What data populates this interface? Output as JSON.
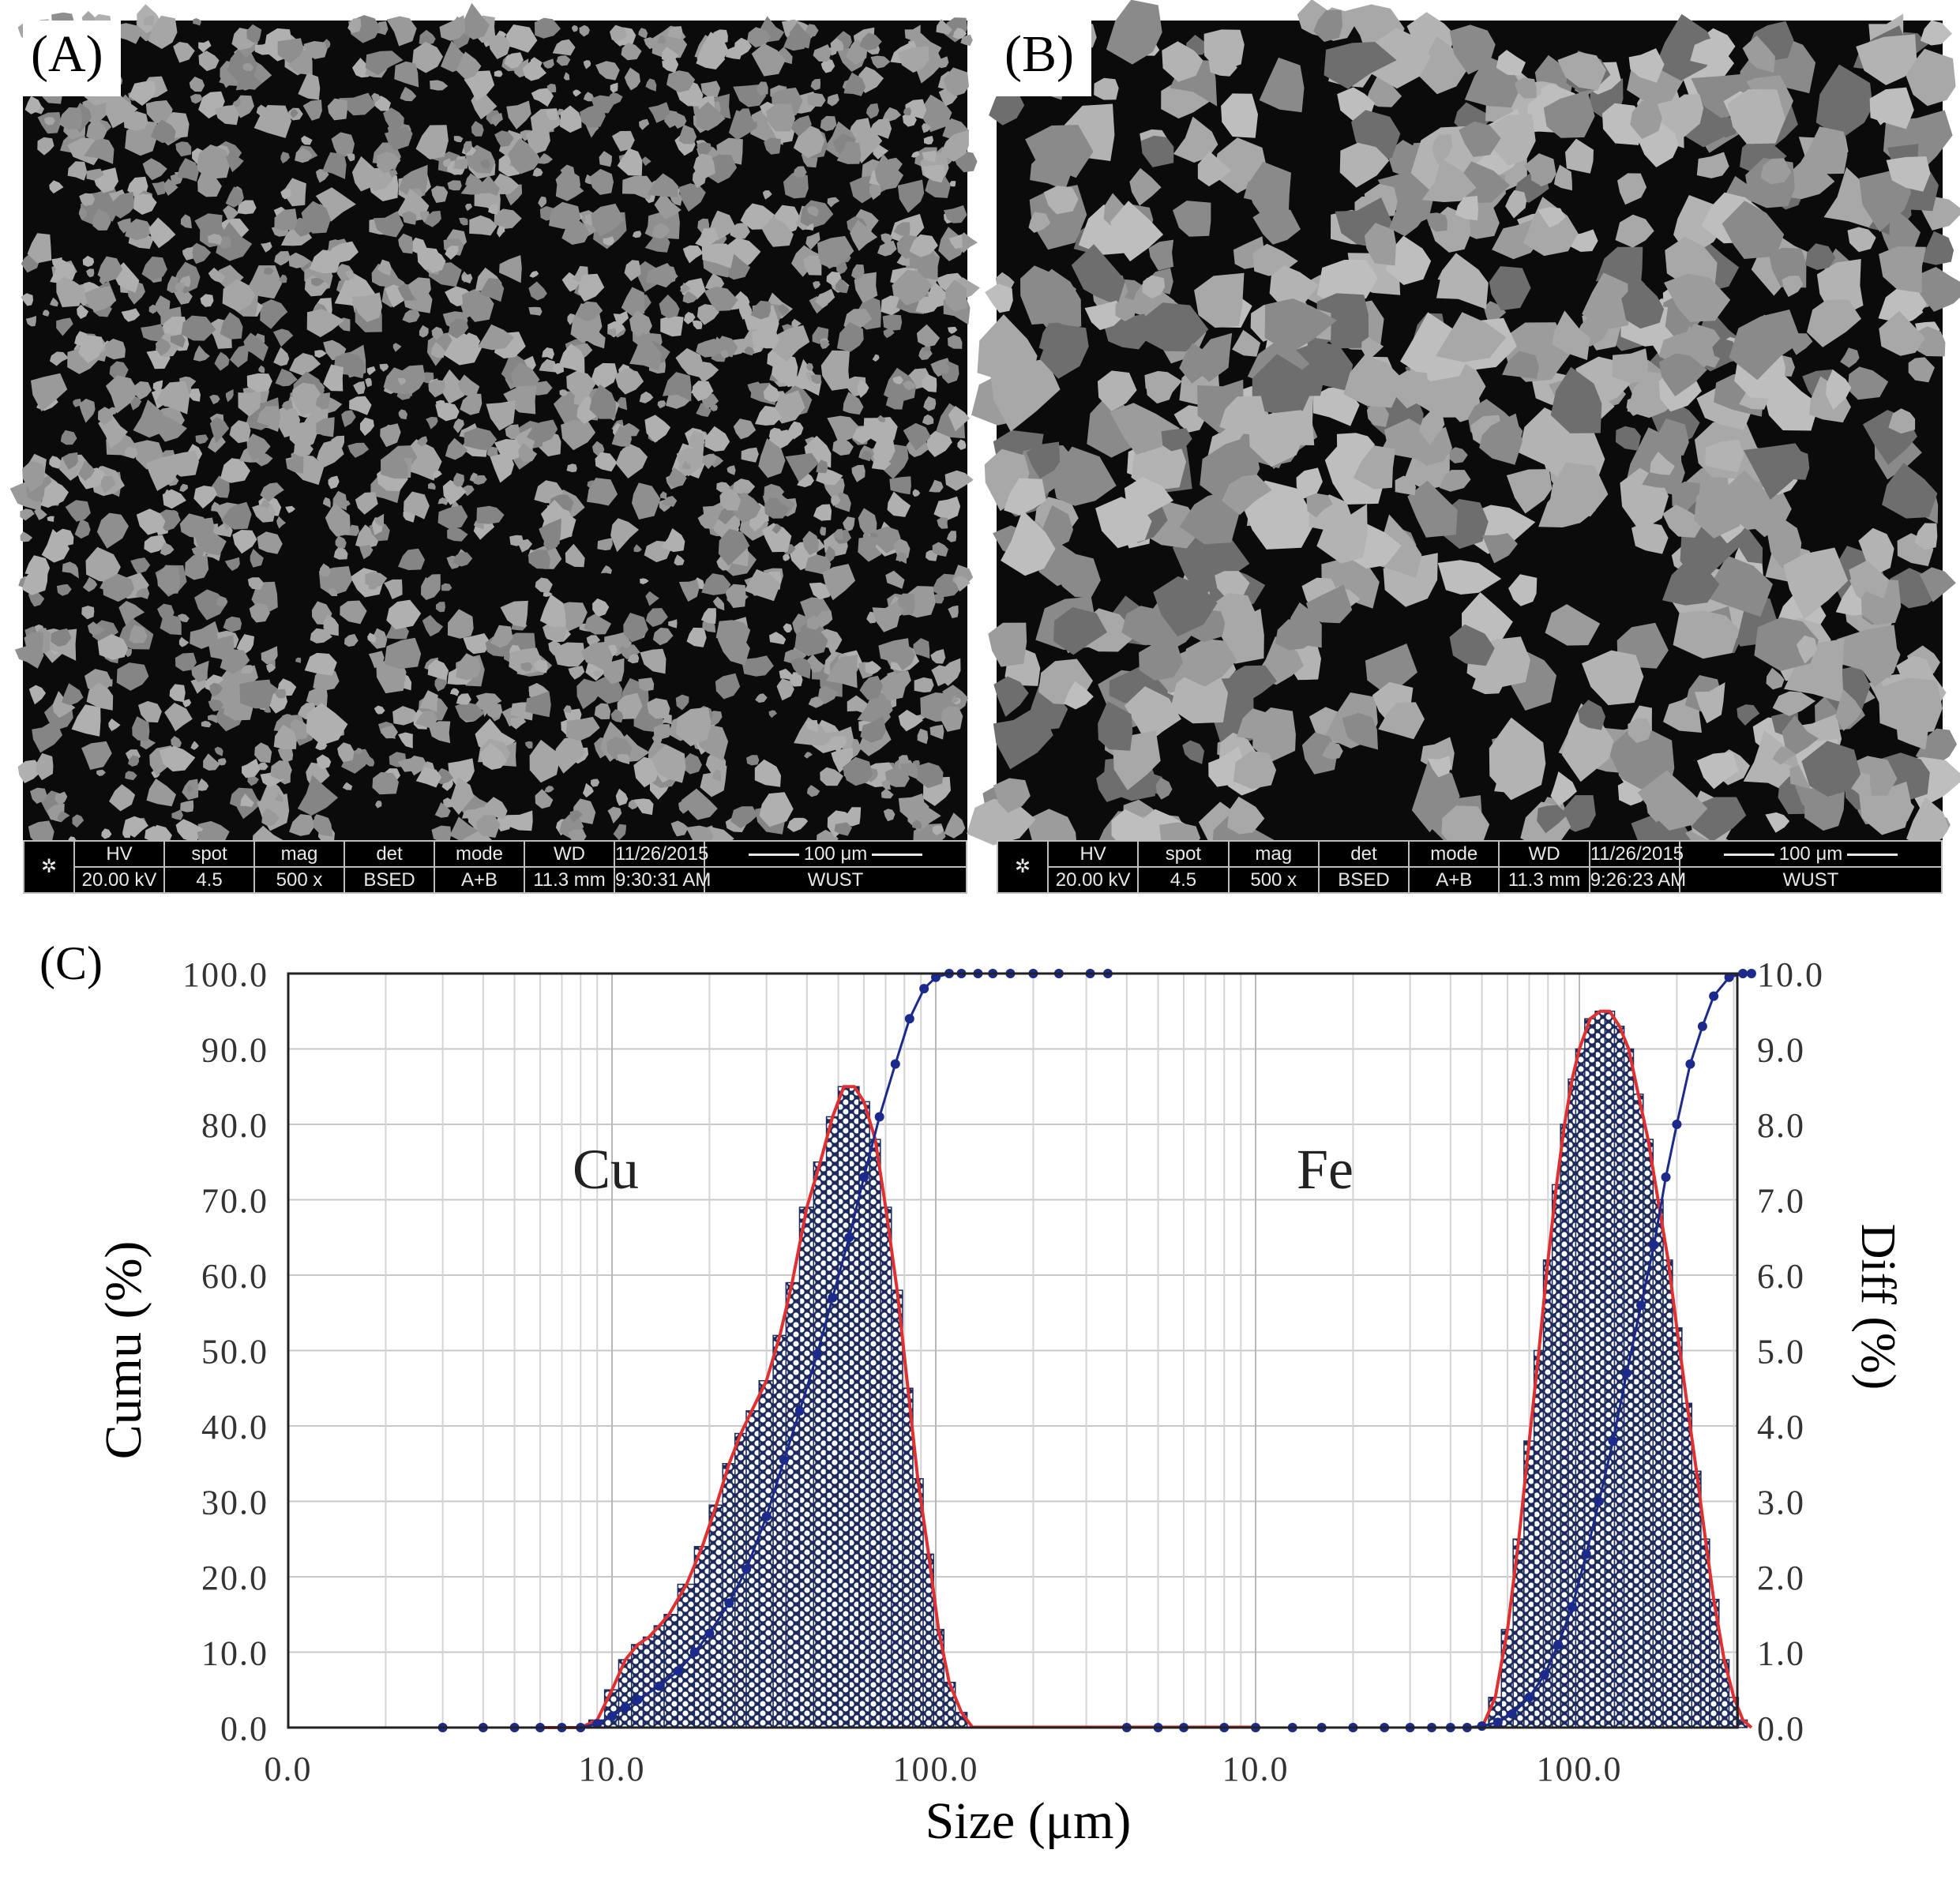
{
  "panels": {
    "a": {
      "label": "(A)",
      "databar": {
        "hv_label": "HV",
        "hv": "20.00 kV",
        "spot_label": "spot",
        "spot": "4.5",
        "mag_label": "mag",
        "mag": "500 x",
        "det_label": "det",
        "det": "BSED",
        "mode_label": "mode",
        "mode": "A+B",
        "wd_label": "WD",
        "wd": "11.3 mm",
        "date": "11/26/2015",
        "time": "9:30:31 AM",
        "scale": "100 μm",
        "lab": "WUST"
      }
    },
    "b": {
      "label": "(B)",
      "databar": {
        "hv_label": "HV",
        "hv": "20.00 kV",
        "spot_label": "spot",
        "spot": "4.5",
        "mag_label": "mag",
        "mag": "500 x",
        "det_label": "det",
        "det": "BSED",
        "mode_label": "mode",
        "mode": "A+B",
        "wd_label": "WD",
        "wd": "11.3 mm",
        "date": "11/26/2015",
        "time": "9:26:23 AM",
        "scale": "100 μm",
        "lab": "WUST"
      }
    }
  },
  "chart_data": {
    "type": "bar",
    "label": "(C)",
    "xlabel": "Size (μm)",
    "ylabel_left": "Cumu (%)",
    "ylabel_right": "Diff (%)",
    "y_left_ticks": [
      "100.0",
      "90.0",
      "80.0",
      "70.0",
      "60.0",
      "50.0",
      "40.0",
      "30.0",
      "20.0",
      "10.0",
      "0.0"
    ],
    "y_right_ticks": [
      "10.0",
      "9.0",
      "8.0",
      "7.0",
      "6.0",
      "5.0",
      "4.0",
      "3.0",
      "2.0",
      "1.0",
      "0.0"
    ],
    "x_ticks": [
      "0.0",
      "10.0",
      "100.0",
      "10.0",
      "100.0"
    ],
    "ylim_left": [
      0,
      100
    ],
    "ylim_right": [
      0,
      10
    ],
    "x_scale": "log",
    "grid": true,
    "colors": {
      "differential": "#e03030",
      "cumulative": "#1c2a8c",
      "bars": "#1c2a5c"
    },
    "series": [
      {
        "name": "Cu",
        "x": [
          6,
          8,
          9,
          10,
          11,
          12,
          13,
          14,
          15,
          17,
          19,
          21,
          23,
          25,
          27,
          30,
          33,
          36,
          40,
          44,
          48,
          52,
          56,
          60,
          65,
          70,
          76,
          82,
          88,
          95,
          102,
          110,
          120,
          130
        ],
        "differential": [
          0.0,
          0.0,
          0.1,
          0.5,
          0.9,
          1.1,
          1.2,
          1.35,
          1.5,
          1.9,
          2.4,
          2.95,
          3.5,
          3.9,
          4.2,
          4.6,
          5.2,
          5.9,
          6.9,
          7.5,
          8.1,
          8.5,
          8.5,
          8.3,
          7.8,
          6.9,
          5.8,
          4.5,
          3.3,
          2.3,
          1.3,
          0.6,
          0.2,
          0.0
        ],
        "cumulative_x": [
          3,
          4,
          5,
          6,
          7,
          8,
          9,
          10,
          11,
          12,
          14,
          16,
          18,
          20,
          23,
          26,
          30,
          34,
          38,
          43,
          48,
          54,
          60,
          67,
          75,
          83,
          92,
          100,
          110,
          120,
          135,
          150,
          170,
          200,
          240,
          300,
          340
        ],
        "cumulative": [
          0,
          0,
          0,
          0,
          0,
          0,
          0.5,
          1.5,
          2.7,
          3.7,
          5.5,
          7.5,
          10,
          12.5,
          16.5,
          21,
          28,
          35.5,
          42,
          49.5,
          57,
          65,
          73,
          81,
          88,
          94,
          98,
          99.5,
          100,
          100,
          100,
          100,
          100,
          100,
          100,
          100,
          100
        ]
      },
      {
        "name": "Fe",
        "x": [
          50,
          55,
          60,
          65,
          70,
          75,
          80,
          85,
          90,
          95,
          100,
          108,
          116,
          124,
          133,
          142,
          152,
          163,
          175,
          188,
          200,
          215,
          230,
          245,
          260,
          280,
          300,
          320,
          340
        ],
        "differential": [
          0.0,
          0.4,
          1.3,
          2.5,
          3.8,
          5.0,
          6.2,
          7.2,
          8.0,
          8.6,
          9.0,
          9.4,
          9.5,
          9.5,
          9.3,
          9.0,
          8.4,
          7.8,
          7.0,
          6.2,
          5.3,
          4.3,
          3.4,
          2.5,
          1.7,
          0.9,
          0.4,
          0.1,
          0.0
        ],
        "cumulative_x": [
          4,
          5,
          6,
          8,
          10,
          13,
          16,
          20,
          25,
          30,
          35,
          40,
          45,
          50,
          56,
          62,
          70,
          78,
          86,
          95,
          105,
          115,
          127,
          140,
          155,
          170,
          185,
          200,
          220,
          240,
          260,
          290,
          320,
          340
        ],
        "cumulative": [
          0,
          0,
          0,
          0,
          0,
          0,
          0,
          0,
          0,
          0,
          0,
          0,
          0,
          0.2,
          0.7,
          1.8,
          4,
          7,
          11,
          16,
          23,
          30,
          38,
          47,
          56,
          64,
          73,
          80,
          88,
          93,
          97,
          99.5,
          100,
          100
        ]
      }
    ]
  }
}
